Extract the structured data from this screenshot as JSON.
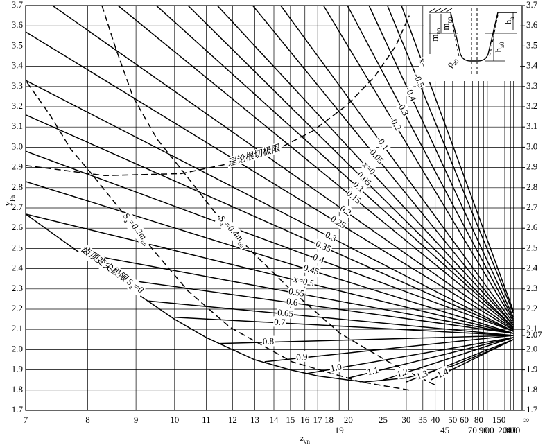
{
  "chart_data": {
    "type": "line",
    "x_scale": "reciprocal",
    "color": "#000000",
    "grid": true,
    "xlim": [
      7,
      null
    ],
    "ylim": [
      1.7,
      3.7
    ],
    "y2lim": [
      1.7,
      3.7
    ],
    "xticks": [
      7,
      8,
      9,
      10,
      11,
      12,
      13,
      14,
      15,
      16,
      17,
      18,
      19,
      20,
      25,
      30,
      35,
      40,
      45,
      50,
      60,
      70,
      80,
      90,
      100,
      150,
      200,
      300,
      400,
      {
        "value": null,
        "label": "∞"
      }
    ],
    "yticks": [
      {
        "value": 1.7,
        "label": "1.7"
      },
      1.8,
      1.9,
      {
        "value": 2,
        "label": "2.0"
      },
      2.1,
      2.2,
      2.3,
      2.4,
      2.5,
      2.6,
      2.7,
      2.8,
      2.9,
      {
        "value": 3,
        "label": "3.0"
      },
      3.1,
      3.2,
      3.3,
      3.4,
      3.5,
      3.6,
      3.7
    ],
    "y2ticks": [
      {
        "value": 1.7,
        "label": "1.7"
      },
      1.8,
      1.9,
      {
        "value": 2,
        "label": "2.0"
      },
      2.07,
      2.1,
      2.2,
      2.3,
      2.4,
      2.5,
      2.6,
      2.7,
      2.8,
      2.9,
      {
        "value": 3,
        "label": "3.0"
      },
      3.1,
      3.2,
      3.3,
      3.4,
      3.5,
      3.6,
      3.7
    ],
    "x_label": [
      {
        "text": "z"
      },
      {
        "text": "vn",
        "sub": true
      }
    ],
    "y_label": [
      {
        "text": "Y"
      },
      {
        "text": "Fa",
        "sub": true
      }
    ],
    "series": [
      {
        "name": "x=-0.6",
        "x": [
          28.8,
          400
        ],
        "values": [
          3.7,
          2.19
        ]
      },
      {
        "name": "-0.5",
        "x": [
          25.8,
          400
        ],
        "values": [
          3.7,
          2.18
        ]
      },
      {
        "name": "-0.4",
        "x": [
          22.7,
          400
        ],
        "values": [
          3.7,
          2.16
        ]
      },
      {
        "name": "-0.3",
        "x": [
          19.9,
          400
        ],
        "values": [
          3.7,
          2.15
        ]
      },
      {
        "name": "-0.2",
        "x": [
          17.5,
          400
        ],
        "values": [
          3.7,
          2.14
        ]
      },
      {
        "name": "-0.1",
        "x": [
          14.4,
          400
        ],
        "values": [
          3.7,
          2.13
        ]
      },
      {
        "name": "-0.05",
        "x": [
          12.9,
          400
        ],
        "values": [
          3.7,
          2.12
        ]
      },
      {
        "name": "x=0",
        "x": [
          11.4,
          400
        ],
        "values": [
          3.7,
          2.12
        ]
      },
      {
        "name": "0.05",
        "x": [
          10.4,
          400
        ],
        "values": [
          3.7,
          2.11
        ]
      },
      {
        "name": "0.1",
        "x": [
          9.5,
          400
        ],
        "values": [
          3.7,
          2.11
        ]
      },
      {
        "name": "0.15",
        "x": [
          8.6,
          400
        ],
        "values": [
          3.7,
          2.105
        ]
      },
      {
        "name": "0.2",
        "x": [
          7.4,
          400
        ],
        "values": [
          3.7,
          2.1
        ]
      },
      {
        "name": "0.25",
        "x": [
          7,
          400
        ],
        "values": [
          3.57,
          2.096
        ]
      },
      {
        "name": "0.3",
        "x": [
          7,
          400
        ],
        "values": [
          3.33,
          2.09
        ]
      },
      {
        "name": "0.35",
        "x": [
          7,
          400
        ],
        "values": [
          3.16,
          2.09
        ]
      },
      {
        "name": "0.4",
        "x": [
          7,
          400
        ],
        "values": [
          2.98,
          2.09
        ]
      },
      {
        "name": "0.45",
        "x": [
          7,
          400
        ],
        "values": [
          2.83,
          2.08
        ]
      },
      {
        "name": "x=0.5",
        "x": [
          7,
          400
        ],
        "values": [
          2.67,
          2.08
        ]
      },
      {
        "name": "0.55",
        "x": [
          8,
          400
        ],
        "values": [
          2.47,
          2.08
        ]
      },
      {
        "name": "0.6",
        "x": [
          8.6,
          400
        ],
        "values": [
          2.35,
          2.08
        ]
      },
      {
        "name": "0.65",
        "x": [
          9.3,
          400
        ],
        "values": [
          2.24,
          2.07
        ]
      },
      {
        "name": "0.7",
        "x": [
          10,
          400
        ],
        "values": [
          2.16,
          2.07
        ]
      },
      {
        "name": "0.8",
        "x": [
          11.5,
          400
        ],
        "values": [
          2.03,
          2.07
        ]
      },
      {
        "name": "0.9",
        "x": [
          13.5,
          400
        ],
        "values": [
          1.94,
          2.07
        ]
      },
      {
        "name": "1.0",
        "x": [
          16,
          400
        ],
        "values": [
          1.88,
          2.06
        ]
      },
      {
        "name": "1.1",
        "x": [
          20,
          400
        ],
        "values": [
          1.86,
          2.06
        ]
      },
      {
        "name": "1.2",
        "x": [
          25,
          400
        ],
        "values": [
          1.85,
          2.06
        ]
      },
      {
        "name": "1.3",
        "x": [
          30,
          400
        ],
        "values": [
          1.84,
          2.05
        ]
      },
      {
        "name": "1.4",
        "x": [
          38,
          400
        ],
        "values": [
          1.85,
          2.05
        ]
      }
    ],
    "curves": [
      {
        "label": [
          {
            "text": "理论根切极限"
          }
        ],
        "dash": true,
        "x": [
          7,
          8.33,
          10.2,
          11.9,
          14.2,
          16.6,
          19.9,
          23.6,
          27.5,
          30.8
        ],
        "values": [
          2.91,
          2.86,
          2.87,
          2.92,
          2.99,
          3.08,
          3.21,
          3.35,
          3.5,
          3.65
        ]
      },
      {
        "label": [
          {
            "text": "S"
          },
          {
            "text": "a",
            "sub": true
          },
          {
            "text": "=0.2m"
          },
          {
            "text": "nn",
            "sub": true
          }
        ],
        "dash": true,
        "x": [
          7.02,
          7.36,
          7.7,
          8.07,
          8.62,
          9.43,
          10.4,
          11.9,
          15.1,
          21.6,
          30.8
        ],
        "values": [
          3.32,
          3.16,
          2.99,
          2.87,
          2.7,
          2.49,
          2.29,
          2.11,
          1.94,
          1.84,
          1.8
        ]
      },
      {
        "label": [
          {
            "text": "S"
          },
          {
            "text": "a",
            "sub": true
          },
          {
            "text": "=0.4m"
          },
          {
            "text": "nn",
            "sub": true
          }
        ],
        "dash": true,
        "x": [
          8.27,
          8.55,
          8.93,
          9.52,
          10.3,
          11.3,
          12.8,
          15.1,
          19.1,
          26,
          40.9
        ],
        "values": [
          3.7,
          3.49,
          3.25,
          3.04,
          2.87,
          2.68,
          2.49,
          2.29,
          2.08,
          1.94,
          1.82
        ]
      },
      {
        "label": [
          {
            "text": "齿顶变尖极限 S"
          },
          {
            "text": "a",
            "sub": true
          },
          {
            "text": "=0"
          }
        ],
        "dash": false,
        "x": [
          7,
          8,
          9,
          10,
          11,
          12,
          13,
          15,
          17,
          20,
          22,
          30,
          50,
          100,
          400
        ],
        "values": [
          2.67,
          2.45,
          2.28,
          2.15,
          2.06,
          2,
          1.95,
          1.9,
          1.87,
          1.85,
          1.84,
          1.86,
          1.92,
          1.99,
          2.05
        ]
      }
    ],
    "inset": {
      "m1": [
        {
          "text": "m"
        },
        {
          "text": "nn",
          "sub": true
        }
      ],
      "m2": [
        {
          "text": "m"
        },
        {
          "text": "nn",
          "sub": true
        }
      ],
      "ha": [
        {
          "text": "h"
        },
        {
          "text": "a",
          "sub": true
        }
      ],
      "ha0": [
        {
          "text": "h"
        },
        {
          "text": "a0",
          "sub": true
        }
      ],
      "rho": [
        {
          "text": "ρ"
        },
        {
          "text": "a0",
          "sub": true
        }
      ]
    }
  }
}
